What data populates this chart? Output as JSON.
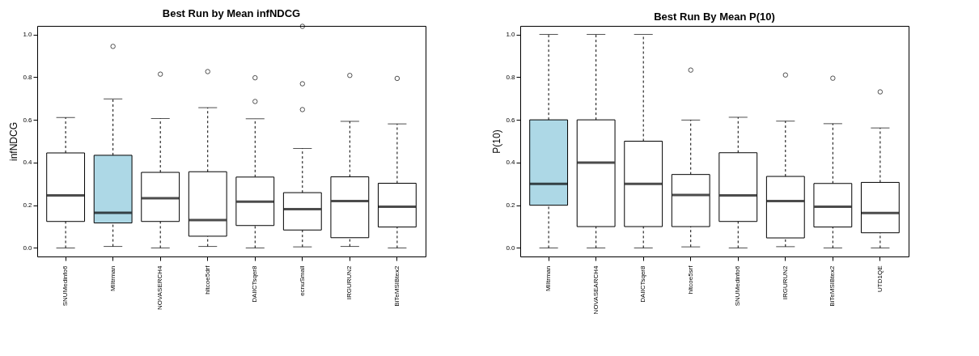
{
  "chart_data": [
    {
      "type": "box",
      "title": "Best Run by Mean infNDCG",
      "ylabel": "infNDCG",
      "categories": [
        "SNUMedinfo6",
        "MIItrman",
        "NOVASERCH4",
        "hltcoe5drf",
        "DAIICTsqer8",
        "ecnuSmall",
        "IRGURUN2",
        "BiTeMSIBtex2"
      ],
      "colors": [
        "#ffffff",
        "#add8e6",
        "#ffffff",
        "#ffffff",
        "#ffffff",
        "#ffffff",
        "#ffffff",
        "#ffffff"
      ],
      "boxes": [
        {
          "low": 0,
          "q1": 0.124,
          "median": 0.246,
          "q3": 0.445,
          "high": 0.611
        },
        {
          "low": 0.007,
          "q1": 0.117,
          "median": 0.165,
          "q3": 0.434,
          "high": 0.698,
          "outliers": [
            0.944
          ]
        },
        {
          "low": 0,
          "q1": 0.124,
          "median": 0.233,
          "q3": 0.354,
          "high": 0.606,
          "outliers": [
            0.814
          ]
        },
        {
          "low": 0.007,
          "q1": 0.055,
          "median": 0.131,
          "q3": 0.357,
          "high": 0.657,
          "outliers": [
            0.826
          ]
        },
        {
          "low": 0,
          "q1": 0.105,
          "median": 0.217,
          "q3": 0.332,
          "high": 0.605,
          "outliers": [
            0.797,
            0.686
          ]
        },
        {
          "low": 0.005,
          "q1": 0.084,
          "median": 0.182,
          "q3": 0.259,
          "high": 0.466,
          "outliers": [
            1.038,
            0.769,
            0.648
          ]
        },
        {
          "low": 0.007,
          "q1": 0.048,
          "median": 0.22,
          "q3": 0.333,
          "high": 0.593,
          "outliers": [
            0.808
          ]
        },
        {
          "low": 0,
          "q1": 0.098,
          "median": 0.193,
          "q3": 0.303,
          "high": 0.581,
          "outliers": [
            0.794
          ]
        }
      ],
      "ylim": [
        -0.04,
        1.04
      ],
      "yticks": [
        {
          "value": 0,
          "label": "0.0"
        },
        {
          "value": 0.2,
          "label": "0.2"
        },
        {
          "value": 0.4,
          "label": "0.4"
        },
        {
          "value": 0.6,
          "label": "0.6"
        },
        {
          "value": 0.8,
          "label": "0.8"
        },
        {
          "value": 1,
          "label": "1.0"
        }
      ],
      "grid": false
    },
    {
      "type": "box",
      "title": "Best Run By Mean P(10)",
      "ylabel": "P(10)",
      "categories": [
        "MIItrman",
        "NOVASEARCH4",
        "DAIICTsqer8",
        "hltcoe5srf",
        "SNUMedinfo6",
        "IRGURUN2",
        "BiTeMSIBtex2",
        "UTD1QE"
      ],
      "colors": [
        "#add8e6",
        "#ffffff",
        "#ffffff",
        "#ffffff",
        "#ffffff",
        "#ffffff",
        "#ffffff",
        "#ffffff"
      ],
      "boxes": [
        {
          "low": 0,
          "q1": 0.2,
          "median": 0.3,
          "q3": 0.6,
          "high": 1.0
        },
        {
          "low": 0,
          "q1": 0.1,
          "median": 0.4,
          "q3": 0.6,
          "high": 1.0
        },
        {
          "low": 0,
          "q1": 0.1,
          "median": 0.3,
          "q3": 0.5,
          "high": 1.0
        },
        {
          "low": 0.005,
          "q1": 0.1,
          "median": 0.248,
          "q3": 0.344,
          "high": 0.599,
          "outliers": [
            0.833
          ]
        },
        {
          "low": 0,
          "q1": 0.124,
          "median": 0.246,
          "q3": 0.446,
          "high": 0.612
        },
        {
          "low": 0.006,
          "q1": 0.047,
          "median": 0.22,
          "q3": 0.335,
          "high": 0.594,
          "outliers": [
            0.81
          ]
        },
        {
          "low": 0,
          "q1": 0.098,
          "median": 0.193,
          "q3": 0.302,
          "high": 0.582,
          "outliers": [
            0.795
          ]
        },
        {
          "low": 0,
          "q1": 0.071,
          "median": 0.164,
          "q3": 0.307,
          "high": 0.562,
          "outliers": [
            0.731
          ]
        }
      ],
      "ylim": [
        -0.04,
        1.04
      ],
      "yticks": [
        {
          "value": 0,
          "label": "0.0"
        },
        {
          "value": 0.2,
          "label": "0.2"
        },
        {
          "value": 0.4,
          "label": "0.4"
        },
        {
          "value": 0.6,
          "label": "0.6"
        },
        {
          "value": 0.8,
          "label": "0.8"
        },
        {
          "value": 1,
          "label": "1.0"
        }
      ],
      "grid": false
    }
  ]
}
